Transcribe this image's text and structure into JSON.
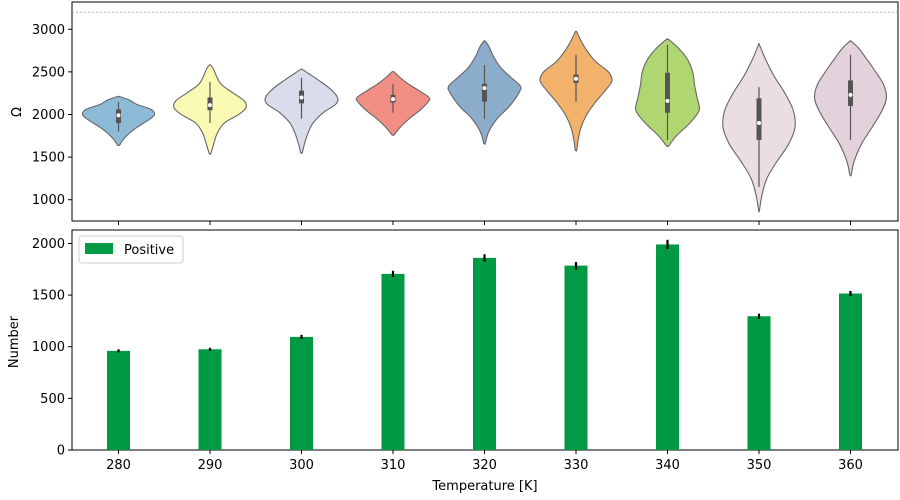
{
  "chart_data": [
    {
      "type": "violin",
      "xlabel": "",
      "ylabel": "Ω",
      "ylim": [
        750,
        3320
      ],
      "yticks": [
        1000,
        1500,
        2000,
        2500,
        3000
      ],
      "reference_line": 3200,
      "categories": [
        "280",
        "290",
        "300",
        "310",
        "320",
        "330",
        "340",
        "350",
        "360"
      ],
      "violins": [
        {
          "x": "280",
          "color": "#8dbad6",
          "min": 1640,
          "max": 2210,
          "q1": 1900,
          "median": 1990,
          "q3": 2060,
          "wmin": 1800,
          "wmax": 2150,
          "profile": [
            [
              1640,
              0.03
            ],
            [
              1700,
              0.12
            ],
            [
              1780,
              0.3
            ],
            [
              1860,
              0.55
            ],
            [
              1940,
              0.85
            ],
            [
              2000,
              1.0
            ],
            [
              2060,
              0.9
            ],
            [
              2120,
              0.5
            ],
            [
              2170,
              0.3
            ],
            [
              2210,
              0.03
            ]
          ]
        },
        {
          "x": "290",
          "color": "#fafab5",
          "min": 1540,
          "max": 2580,
          "q1": 2050,
          "median": 2110,
          "q3": 2200,
          "wmin": 1900,
          "wmax": 2380,
          "profile": [
            [
              1540,
              0.02
            ],
            [
              1650,
              0.1
            ],
            [
              1780,
              0.2
            ],
            [
              1900,
              0.4
            ],
            [
              2000,
              0.8
            ],
            [
              2080,
              1.0
            ],
            [
              2160,
              0.95
            ],
            [
              2250,
              0.65
            ],
            [
              2350,
              0.32
            ],
            [
              2450,
              0.18
            ],
            [
              2530,
              0.1
            ],
            [
              2580,
              0.02
            ]
          ]
        },
        {
          "x": "300",
          "color": "#d8dceb",
          "min": 1550,
          "max": 2530,
          "q1": 2130,
          "median": 2200,
          "q3": 2280,
          "wmin": 1950,
          "wmax": 2430,
          "profile": [
            [
              1550,
              0.02
            ],
            [
              1650,
              0.08
            ],
            [
              1780,
              0.18
            ],
            [
              1900,
              0.32
            ],
            [
              2020,
              0.6
            ],
            [
              2120,
              0.95
            ],
            [
              2200,
              1.0
            ],
            [
              2300,
              0.8
            ],
            [
              2400,
              0.48
            ],
            [
              2480,
              0.2
            ],
            [
              2530,
              0.02
            ]
          ]
        },
        {
          "x": "310",
          "color": "#f28f84",
          "min": 1760,
          "max": 2500,
          "q1": 2140,
          "median": 2180,
          "q3": 2230,
          "wmin": 2020,
          "wmax": 2360,
          "profile": [
            [
              1760,
              0.03
            ],
            [
              1850,
              0.2
            ],
            [
              1950,
              0.45
            ],
            [
              2050,
              0.75
            ],
            [
              2150,
              0.98
            ],
            [
              2200,
              1.0
            ],
            [
              2280,
              0.72
            ],
            [
              2360,
              0.42
            ],
            [
              2440,
              0.18
            ],
            [
              2500,
              0.03
            ]
          ]
        },
        {
          "x": "320",
          "color": "#8caccc",
          "min": 1660,
          "max": 2860,
          "q1": 2150,
          "median": 2310,
          "q3": 2360,
          "wmin": 1950,
          "wmax": 2580,
          "profile": [
            [
              1660,
              0.02
            ],
            [
              1800,
              0.12
            ],
            [
              1950,
              0.35
            ],
            [
              2100,
              0.7
            ],
            [
              2250,
              0.95
            ],
            [
              2330,
              1.0
            ],
            [
              2430,
              0.75
            ],
            [
              2550,
              0.45
            ],
            [
              2680,
              0.25
            ],
            [
              2800,
              0.12
            ],
            [
              2860,
              0.02
            ]
          ]
        },
        {
          "x": "330",
          "color": "#f3b26b",
          "min": 1580,
          "max": 2970,
          "q1": 2370,
          "median": 2420,
          "q3": 2470,
          "wmin": 2150,
          "wmax": 2700,
          "profile": [
            [
              1580,
              0.02
            ],
            [
              1700,
              0.06
            ],
            [
              1850,
              0.14
            ],
            [
              2000,
              0.3
            ],
            [
              2150,
              0.55
            ],
            [
              2300,
              0.85
            ],
            [
              2400,
              1.0
            ],
            [
              2500,
              0.9
            ],
            [
              2620,
              0.55
            ],
            [
              2750,
              0.3
            ],
            [
              2880,
              0.12
            ],
            [
              2970,
              0.02
            ]
          ]
        },
        {
          "x": "340",
          "color": "#b0d671",
          "min": 1630,
          "max": 2880,
          "q1": 2020,
          "median": 2160,
          "q3": 2490,
          "wmin": 1700,
          "wmax": 2820,
          "profile": [
            [
              1630,
              0.03
            ],
            [
              1750,
              0.25
            ],
            [
              1900,
              0.62
            ],
            [
              2050,
              0.88
            ],
            [
              2200,
              0.82
            ],
            [
              2350,
              0.75
            ],
            [
              2500,
              0.7
            ],
            [
              2650,
              0.55
            ],
            [
              2780,
              0.3
            ],
            [
              2880,
              0.03
            ]
          ]
        },
        {
          "x": "350",
          "color": "#eadee3",
          "min": 870,
          "max": 2820,
          "q1": 1700,
          "median": 1900,
          "q3": 2190,
          "wmin": 1150,
          "wmax": 2320,
          "profile": [
            [
              870,
              0.01
            ],
            [
              1050,
              0.08
            ],
            [
              1250,
              0.22
            ],
            [
              1450,
              0.5
            ],
            [
              1650,
              0.82
            ],
            [
              1850,
              1.0
            ],
            [
              2050,
              0.95
            ],
            [
              2250,
              0.72
            ],
            [
              2450,
              0.42
            ],
            [
              2650,
              0.18
            ],
            [
              2820,
              0.01
            ]
          ]
        },
        {
          "x": "360",
          "color": "#e3d2db",
          "min": 1290,
          "max": 2860,
          "q1": 2100,
          "median": 2230,
          "q3": 2400,
          "wmin": 1700,
          "wmax": 2700,
          "profile": [
            [
              1290,
              0.02
            ],
            [
              1450,
              0.1
            ],
            [
              1650,
              0.3
            ],
            [
              1850,
              0.6
            ],
            [
              2050,
              0.88
            ],
            [
              2200,
              1.0
            ],
            [
              2350,
              0.92
            ],
            [
              2500,
              0.7
            ],
            [
              2650,
              0.45
            ],
            [
              2780,
              0.22
            ],
            [
              2860,
              0.02
            ]
          ]
        }
      ]
    },
    {
      "type": "bar",
      "xlabel": "Temperature [K]",
      "ylabel": "Number",
      "ylim": [
        0,
        2130
      ],
      "yticks": [
        0,
        500,
        1000,
        1500,
        2000
      ],
      "categories": [
        "280",
        "290",
        "300",
        "310",
        "320",
        "330",
        "340",
        "350",
        "360"
      ],
      "series": [
        {
          "name": "Positive",
          "color": "#009a44",
          "values": [
            960,
            975,
            1095,
            1705,
            1860,
            1785,
            1990,
            1295,
            1515
          ],
          "errors": [
            15,
            15,
            20,
            30,
            35,
            35,
            45,
            25,
            25
          ]
        }
      ],
      "legend": "top-left"
    }
  ]
}
